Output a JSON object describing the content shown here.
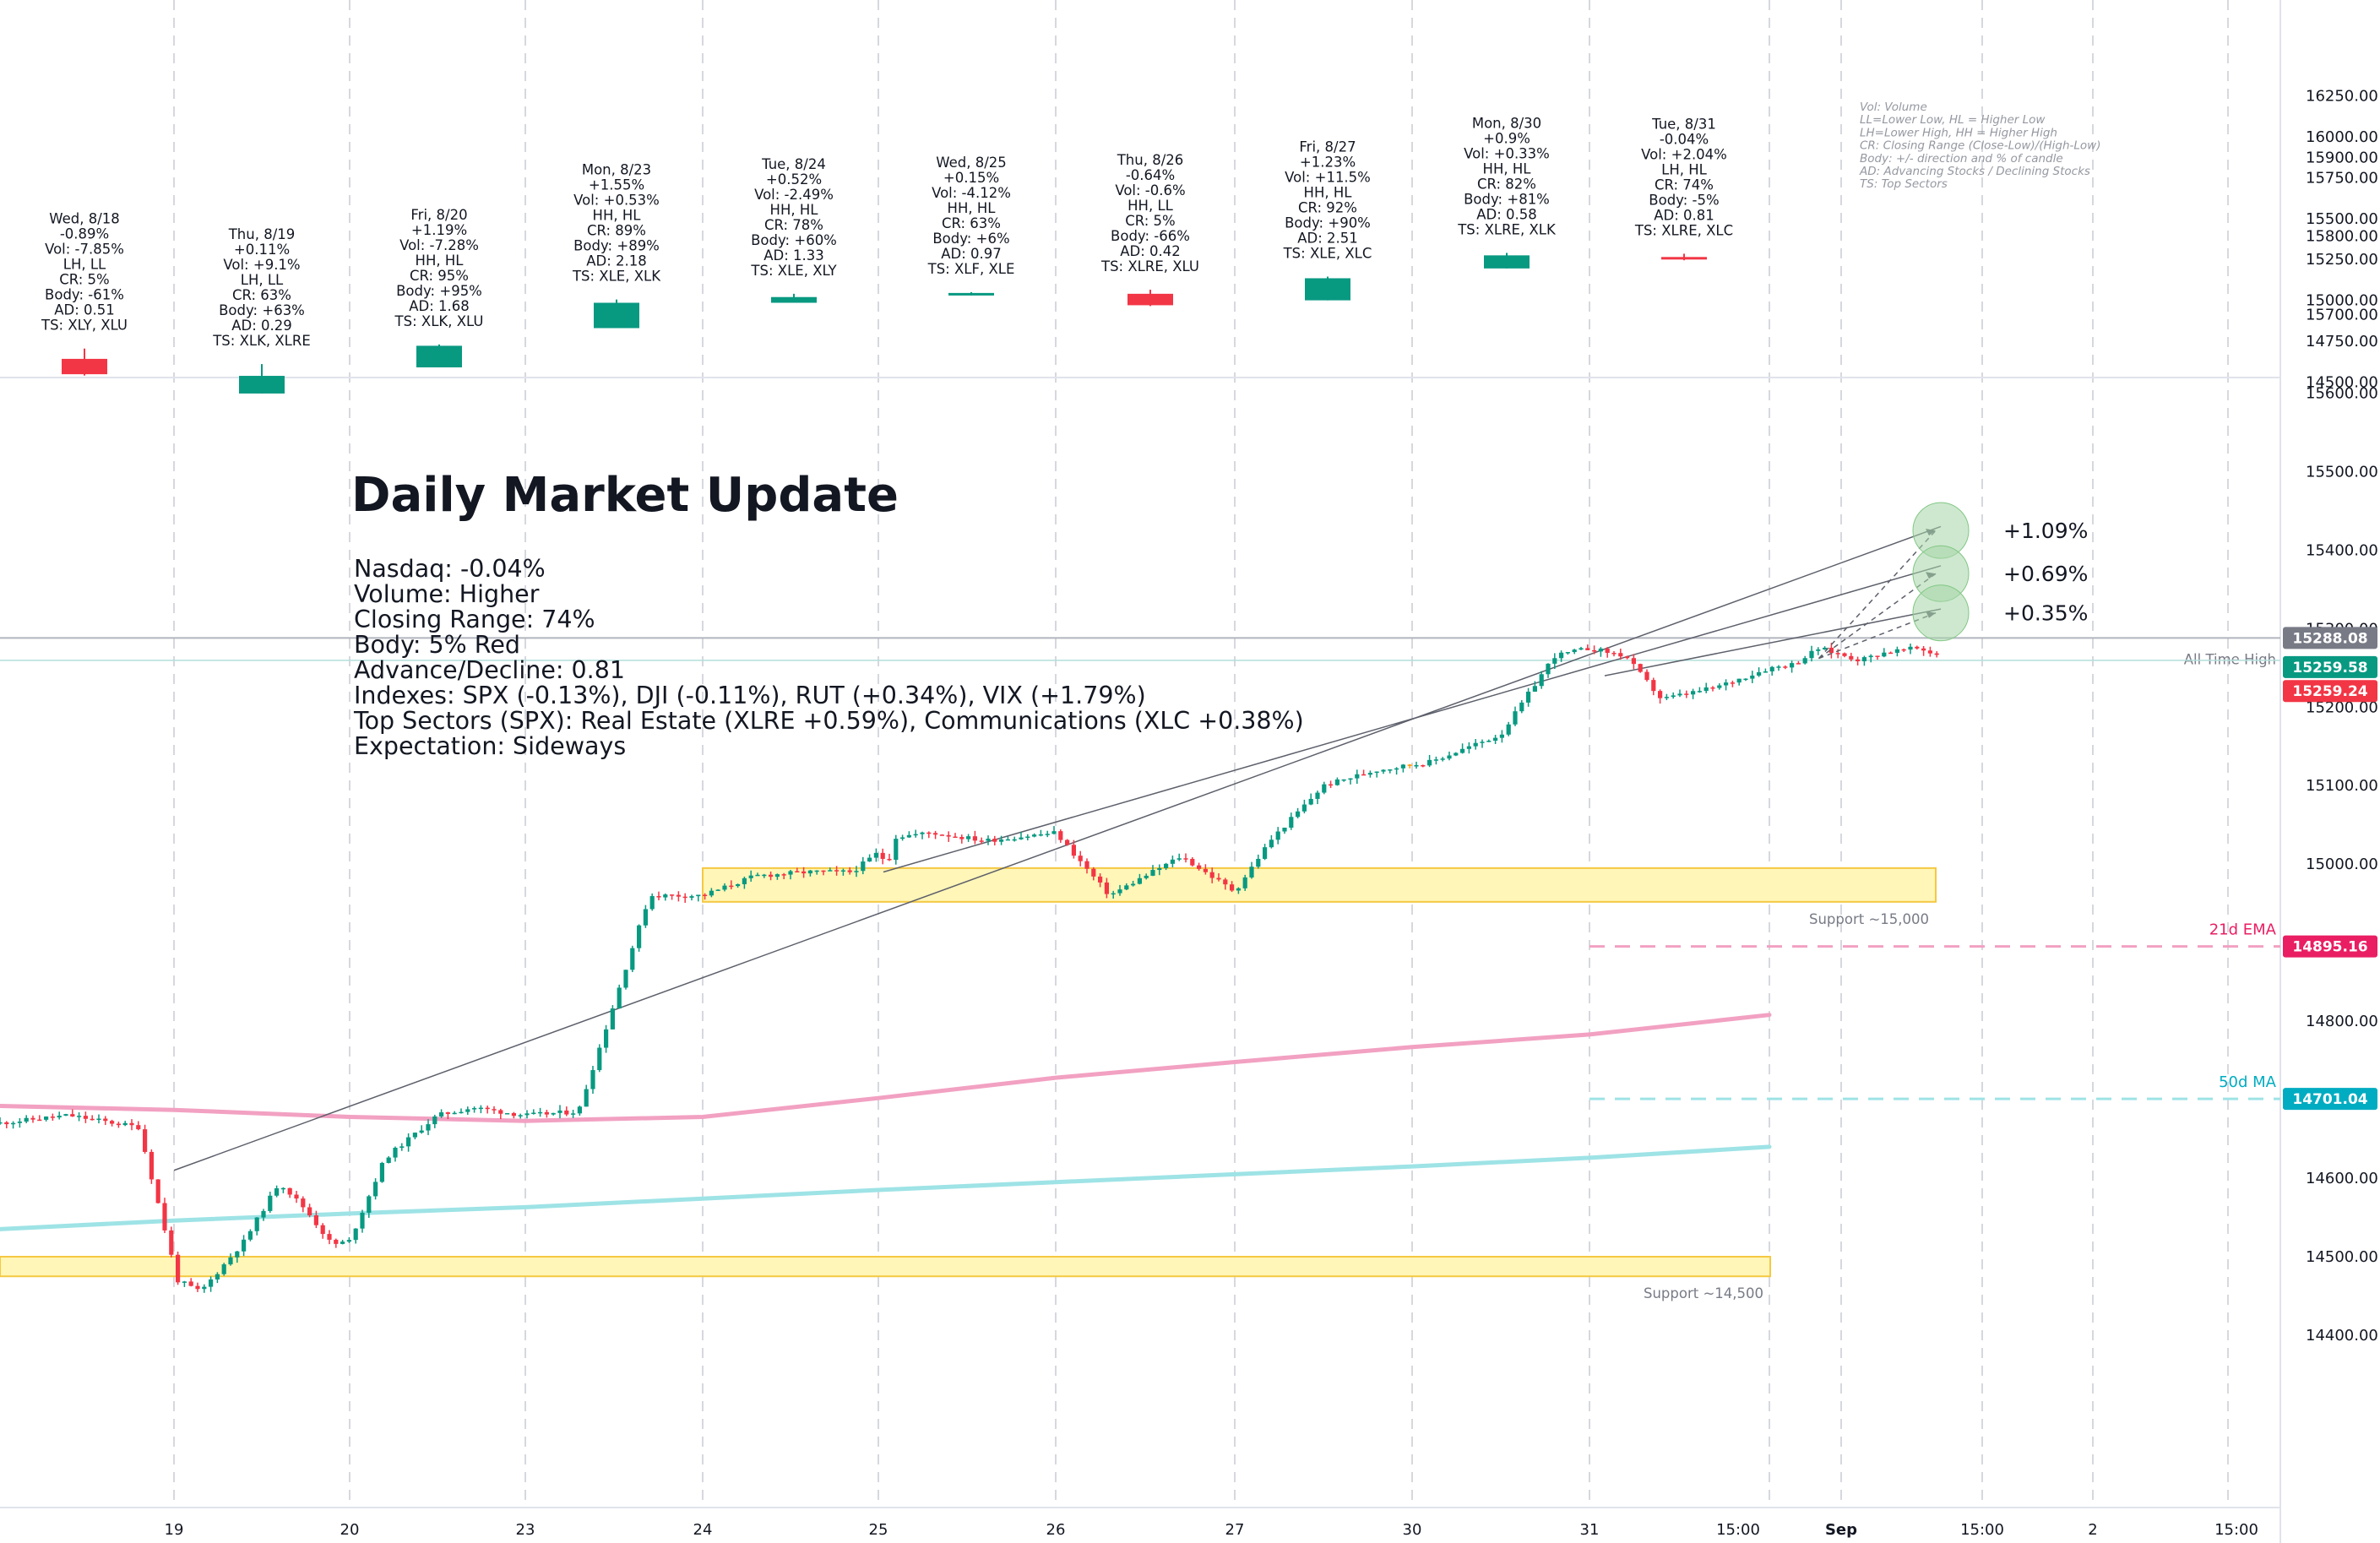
{
  "colors": {
    "up": "#089981",
    "down": "#f23645",
    "ema": "#f2a1c2",
    "ma": "#9ee3e6",
    "ema_label": "#e91e63",
    "ma_label": "#00acc1",
    "zone_fill": "#fff6b8",
    "zone_stroke": "#f5c842",
    "projection": "#a5d6a7"
  },
  "summary": {
    "days": [
      {
        "date": "Wed, 8/18",
        "chg": "-0.89%",
        "vol": "Vol: -7.85%",
        "hl": "LH, LL",
        "cr": "CR: 5%",
        "body": "Body: -61%",
        "ad": "AD: 0.51",
        "ts": "TS: XLY, XLU",
        "open": 14642,
        "close": 14548,
        "high": 14705,
        "low": 14540
      },
      {
        "date": "Thu, 8/19",
        "chg": "+0.11%",
        "vol": "Vol: +9.1%",
        "hl": "LH, LL",
        "cr": "CR: 63%",
        "body": "Body: +63%",
        "ad": "AD: 0.29",
        "ts": "TS: XLK, XLRE",
        "open": 14430,
        "close": 14538,
        "high": 14610,
        "low": 14430
      },
      {
        "date": "Fri, 8/20",
        "chg": "+1.19%",
        "vol": "Vol: -7.28%",
        "hl": "HH, HL",
        "cr": "CR: 95%",
        "body": "Body: +95%",
        "ad": "AD: 1.68",
        "ts": "TS: XLK, XLU",
        "open": 14590,
        "close": 14722,
        "high": 14730,
        "low": 14590
      },
      {
        "date": "Mon, 8/23",
        "chg": "+1.55%",
        "vol": "Vol: +0.53%",
        "hl": "HH, HL",
        "cr": "CR: 89%",
        "body": "Body: +89%",
        "ad": "AD: 2.18",
        "ts": "TS: XLE, XLK",
        "open": 14830,
        "close": 14985,
        "high": 15005,
        "low": 14830
      },
      {
        "date": "Tue, 8/24",
        "chg": "+0.52%",
        "vol": "Vol: -2.49%",
        "hl": "HH, HL",
        "cr": "CR: 78%",
        "body": "Body: +60%",
        "ad": "AD: 1.33",
        "ts": "TS: XLE, XLY",
        "open": 14985,
        "close": 15020,
        "high": 15040,
        "low": 14985
      },
      {
        "date": "Wed, 8/25",
        "chg": "+0.15%",
        "vol": "Vol: -4.12%",
        "hl": "HH, HL",
        "cr": "CR: 63%",
        "body": "Body: +6%",
        "ad": "AD: 0.97",
        "ts": "TS: XLF, XLE",
        "open": 15035,
        "close": 15045,
        "high": 15050,
        "low": 15030
      },
      {
        "date": "Thu, 8/26",
        "chg": "-0.64%",
        "vol": "Vol: -0.6%",
        "hl": "HH, LL",
        "cr": "CR: 5%",
        "body": "Body: -66%",
        "ad": "AD: 0.42",
        "ts": "TS: XLRE, XLU",
        "open": 15040,
        "close": 14970,
        "high": 15065,
        "low": 14965
      },
      {
        "date": "Fri, 8/27",
        "chg": "+1.23%",
        "vol": "Vol: +11.5%",
        "hl": "HH, HL",
        "cr": "CR: 92%",
        "body": "Body: +90%",
        "ad": "AD: 2.51",
        "ts": "TS: XLE, XLC",
        "open": 15000,
        "close": 15135,
        "high": 15145,
        "low": 15000
      },
      {
        "date": "Mon, 8/30",
        "chg": "+0.9%",
        "vol": "Vol: +0.33%",
        "hl": "HH, HL",
        "cr": "CR: 82%",
        "body": "Body: +81%",
        "ad": "AD: 0.58",
        "ts": "TS: XLRE, XLK",
        "open": 15195,
        "close": 15275,
        "high": 15290,
        "low": 15195
      },
      {
        "date": "Tue, 8/31",
        "chg": "-0.04%",
        "vol": "Vol: +2.04%",
        "hl": "LH, HL",
        "cr": "CR: 74%",
        "body": "Body: -5%",
        "ad": "AD: 0.81",
        "ts": "TS: XLRE, XLC",
        "open": 15265,
        "close": 15262,
        "high": 15285,
        "low": 15245
      }
    ],
    "legend": [
      "Vol: Volume",
      "LL=Lower Low, HL = Higher Low",
      "LH=Lower High, HH = Higher High",
      "CR: Closing Range (Close-Low)/(High-Low)",
      "Body: +/- direction and % of candle",
      "AD: Advancing Stocks / Declining Stocks",
      "TS: Top Sectors"
    ],
    "axis_ticks": [
      "16250.00",
      "16000.00",
      "15750.00",
      "15500.00",
      "15250.00",
      "15000.00",
      "14750.00",
      "14500.00"
    ],
    "axis_values": [
      16250,
      16000,
      15750,
      15500,
      15250,
      15000,
      14750,
      14500
    ]
  },
  "main": {
    "title": "Daily Market Update",
    "lines": [
      "Nasdaq: -0.04%",
      "Volume: Higher",
      "Closing Range: 74%",
      "Body: 5% Red",
      "Advance/Decline: 0.81",
      "Indexes: SPX (-0.13%), DJI (-0.11%), RUT (+0.34%), VIX (+1.79%)",
      "Top Sectors (SPX): Real Estate (XLRE +0.59%), Communications (XLC +0.38%)",
      "Expectation: Sideways"
    ],
    "axis_ticks": [
      "15900.00",
      "15800.00",
      "15700.00",
      "15600.00",
      "15500.00",
      "15400.00",
      "15300.00",
      "15200.00",
      "15100.00",
      "15000.00",
      "14900.00",
      "14800.00",
      "14700.00",
      "14600.00",
      "14500.00",
      "14400.00"
    ],
    "axis_values": [
      15900,
      15800,
      15700,
      15600,
      15500,
      15400,
      15300,
      15200,
      15100,
      15000,
      14900,
      14800,
      14700,
      14600,
      14500,
      14400
    ],
    "x_ticks": [
      "19",
      "20",
      "23",
      "24",
      "25",
      "26",
      "27",
      "30",
      "31",
      "15:00",
      "Sep",
      "15:00",
      "2",
      "15:00"
    ],
    "x_ticks_bold": [
      false,
      false,
      false,
      false,
      false,
      false,
      false,
      false,
      false,
      false,
      true,
      false,
      false,
      false
    ],
    "price_badges": [
      {
        "value": "15288.08",
        "price": 15288.08,
        "bg": "#787b86"
      },
      {
        "value": "15259.58",
        "price": 15259.58,
        "bg": "#089981"
      },
      {
        "value": "15259.24",
        "price": 15259.24,
        "bg": "#f23645"
      },
      {
        "value": "14895.16",
        "price": 14895.16,
        "bg": "#e91e63"
      },
      {
        "value": "14701.04",
        "price": 14701.04,
        "bg": "#00acc1"
      }
    ],
    "all_time_high_label": "All Time High",
    "ath_price": 15288.08,
    "current_price": 15259.58,
    "ema_label": "21d EMA",
    "ema_value": 14895.16,
    "ma_label": "50d MA",
    "ma_value": 14701.04,
    "zones": [
      {
        "label": "Support ~15,000",
        "top": 14995,
        "bottom": 14952
      },
      {
        "label": "Support ~14,500",
        "top": 14500,
        "bottom": 14475
      }
    ],
    "projections": [
      {
        "label": "+1.09%",
        "target": 15425
      },
      {
        "label": "+0.69%",
        "target": 15370
      },
      {
        "label": "+0.35%",
        "target": 15320
      }
    ]
  },
  "chart_data": {
    "type": "candlestick",
    "title": "Daily Market Update",
    "symbol_hint": "Nasdaq Composite",
    "daily": {
      "categories": [
        "8/18",
        "8/19",
        "8/20",
        "8/23",
        "8/24",
        "8/25",
        "8/26",
        "8/27",
        "8/30",
        "8/31"
      ],
      "open": [
        14642,
        14430,
        14590,
        14830,
        14985,
        15035,
        15040,
        15000,
        15195,
        15265
      ],
      "close": [
        14548,
        14538,
        14722,
        14985,
        15020,
        15045,
        14970,
        15135,
        15275,
        15262
      ],
      "high": [
        14705,
        14610,
        14730,
        15005,
        15040,
        15050,
        15065,
        15145,
        15290,
        15285
      ],
      "low": [
        14540,
        14430,
        14590,
        14830,
        14985,
        15030,
        14965,
        15000,
        15195,
        15245
      ],
      "ylim": [
        14450,
        16280
      ]
    },
    "intraday": {
      "x_session": [
        -1.0,
        -0.6,
        -0.2,
        0.02,
        0.15,
        0.4,
        0.6,
        0.75,
        0.9,
        1.0,
        1.2,
        1.5,
        1.7,
        2.0,
        2.3,
        2.7,
        3.0,
        3.3,
        3.6,
        3.85,
        4.0,
        4.05,
        4.1,
        4.3,
        4.6,
        5.0,
        5.3,
        5.7,
        6.0,
        6.2,
        6.5,
        6.8,
        7.1,
        7.5,
        7.8,
        8.0,
        8.1,
        8.2,
        8.4,
        8.7,
        9.0,
        9.15,
        9.3,
        9.55,
        9.7,
        9.9,
        10.05,
        10.15,
        10.25
      ],
      "price": [
        14670,
        14680,
        14665,
        14470,
        14455,
        14520,
        14595,
        14560,
        14515,
        14520,
        14625,
        14680,
        14690,
        14680,
        14685,
        14960,
        14960,
        14985,
        14990,
        14990,
        15015,
        15000,
        15035,
        15040,
        15030,
        15040,
        14960,
        15010,
        14965,
        15030,
        15100,
        15120,
        15130,
        15165,
        15265,
        15275,
        15270,
        15265,
        15210,
        15225,
        15250,
        15255,
        15275,
        15260,
        15270,
        15275,
        15265,
        15262,
        15259.58
      ],
      "ylim": [
        14350,
        15920
      ]
    },
    "series": [
      {
        "name": "21d EMA",
        "last": 14895.16,
        "x": [
          -1.0,
          0,
          1,
          2,
          3,
          4,
          5,
          6,
          7,
          8,
          9
        ],
        "values": [
          14692,
          14687,
          14678,
          14673,
          14678,
          14702,
          14728,
          14748,
          14767,
          14783,
          14808
        ]
      },
      {
        "name": "50d MA",
        "last": 14701.04,
        "x": [
          -1.0,
          0,
          1,
          2,
          3,
          4,
          5,
          6,
          7,
          8,
          9
        ],
        "values": [
          14535,
          14546,
          14555,
          14563,
          14574,
          14585,
          14595,
          14605,
          14615,
          14626,
          14640
        ]
      }
    ],
    "levels": [
      {
        "name": "All Time High",
        "value": 15288.08
      },
      {
        "name": "Support ~15,000",
        "range": [
          14952,
          14995
        ]
      },
      {
        "name": "Support ~14,500",
        "range": [
          14475,
          14500
        ]
      }
    ],
    "projections": [
      {
        "label": "+1.09%",
        "target": 15425
      },
      {
        "label": "+0.69%",
        "target": 15370
      },
      {
        "label": "+0.35%",
        "target": 15320
      }
    ]
  }
}
